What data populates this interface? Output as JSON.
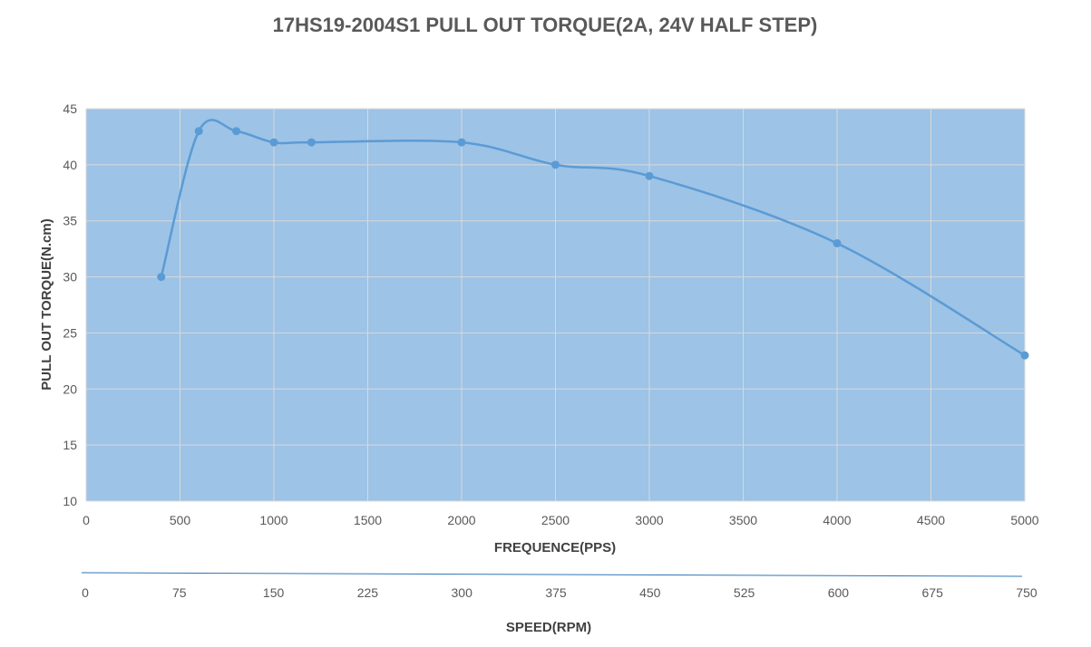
{
  "chart_data": {
    "type": "line",
    "title": "17HS19-2004S1  PULL OUT TORQUE(2A, 24V HALF STEP)",
    "xlabel": "FREQUENCE(PPS)",
    "ylabel": "PULL OUT TORQUE(N.cm)",
    "secondary_xlabel": "SPEED(RPM)",
    "xlim": [
      0,
      5000
    ],
    "ylim": [
      10,
      45
    ],
    "x_ticks": [
      "0",
      "500",
      "1000",
      "1500",
      "2000",
      "2500",
      "3000",
      "3500",
      "4000",
      "4500",
      "5000"
    ],
    "y_ticks": [
      "10",
      "15",
      "20",
      "25",
      "30",
      "35",
      "40",
      "45"
    ],
    "secondary_x_ticks": [
      "0",
      "75",
      "150",
      "225",
      "300",
      "375",
      "450",
      "525",
      "600",
      "675",
      "750"
    ],
    "grid": true,
    "plot_background": "#9dc3e6",
    "line_color": "#5b9bd5",
    "series": [
      {
        "x": [
          400,
          600,
          800,
          1000,
          1200,
          2000,
          2500,
          3000,
          4000,
          5000
        ],
        "y": [
          30,
          43,
          43,
          42,
          42,
          42,
          40,
          39,
          33,
          23
        ]
      }
    ]
  }
}
